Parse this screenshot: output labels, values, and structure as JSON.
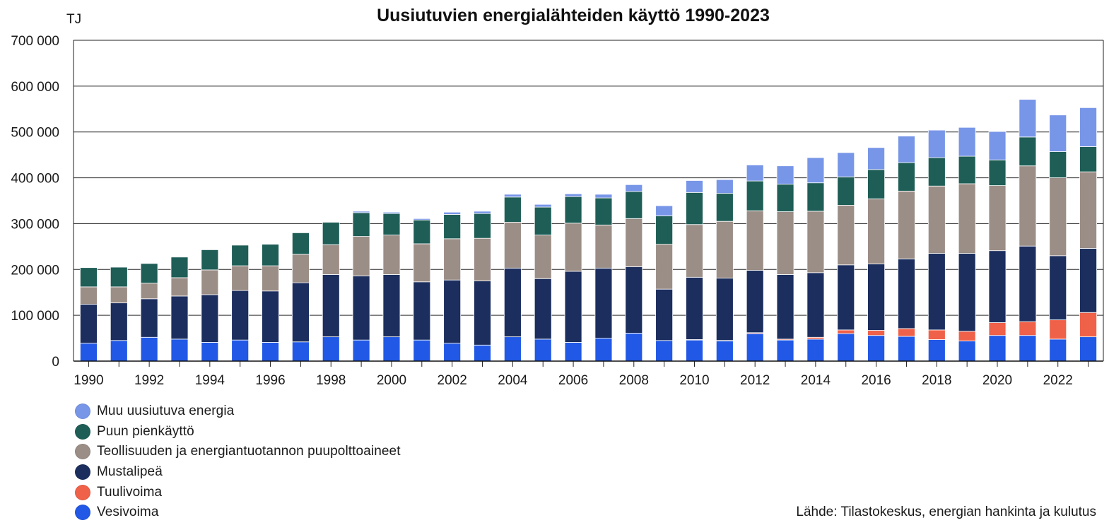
{
  "chart_data": {
    "type": "bar",
    "stacked": true,
    "title": "Uusiutuvien energialähteiden käyttö 1990-2023",
    "ylabel": "TJ",
    "xlabel": "",
    "ylim": [
      0,
      700000
    ],
    "yticks": [
      0,
      100000,
      200000,
      300000,
      400000,
      500000,
      600000,
      700000
    ],
    "ytick_labels": [
      "0",
      "100 000",
      "200 000",
      "300 000",
      "400 000",
      "500 000",
      "600 000",
      "700 000"
    ],
    "categories": [
      "1990",
      "1991",
      "1992",
      "1993",
      "1994",
      "1995",
      "1996",
      "1997",
      "1998",
      "1999",
      "2000",
      "2001",
      "2002",
      "2003",
      "2004",
      "2005",
      "2006",
      "2007",
      "2008",
      "2009",
      "2010",
      "2011",
      "2012",
      "2013",
      "2014",
      "2015",
      "2016",
      "2017",
      "2018",
      "2019",
      "2020",
      "2021",
      "2022",
      "2023"
    ],
    "xtick_labels": [
      "1990",
      "",
      "1992",
      "",
      "1994",
      "",
      "1996",
      "",
      "1998",
      "",
      "2000",
      "",
      "2002",
      "",
      "2004",
      "",
      "2006",
      "",
      "2008",
      "",
      "2010",
      "",
      "2012",
      "",
      "2014",
      "",
      "2016",
      "",
      "2018",
      "",
      "2020",
      "",
      "2022",
      ""
    ],
    "grid": true,
    "series": [
      {
        "name": "Vesivoima",
        "color": "#2158e6",
        "values": [
          39000,
          45000,
          52000,
          48000,
          41000,
          46000,
          41000,
          42000,
          53000,
          46000,
          53000,
          46000,
          39000,
          35000,
          53000,
          48000,
          41000,
          50000,
          61000,
          45000,
          46000,
          44000,
          60000,
          46000,
          48000,
          60000,
          56000,
          54000,
          47000,
          44000,
          56000,
          56000,
          48000,
          53000
        ]
      },
      {
        "name": "Tuulivoima",
        "color": "#f06149",
        "values": [
          0,
          0,
          0,
          0,
          0,
          0,
          0,
          0,
          0,
          0,
          0,
          0,
          0,
          0,
          0,
          0,
          0,
          0,
          0,
          0,
          1000,
          1000,
          2000,
          2000,
          4000,
          8000,
          11000,
          17000,
          21000,
          21000,
          28000,
          30000,
          42000,
          53000
        ]
      },
      {
        "name": "Mustalipeä",
        "color": "#1c2e5e",
        "values": [
          85000,
          82000,
          84000,
          94000,
          104000,
          108000,
          112000,
          129000,
          136000,
          140000,
          136000,
          127000,
          138000,
          140000,
          150000,
          132000,
          155000,
          153000,
          145000,
          112000,
          136000,
          136000,
          136000,
          141000,
          141000,
          142000,
          145000,
          152000,
          167000,
          170000,
          157000,
          165000,
          140000,
          140000
        ]
      },
      {
        "name": "Teollisuuden ja energiantuotannon puupolttoaineet",
        "color": "#9b8e87",
        "values": [
          38000,
          35000,
          34000,
          40000,
          54000,
          54000,
          55000,
          62000,
          65000,
          86000,
          86000,
          83000,
          90000,
          93000,
          100000,
          95000,
          105000,
          94000,
          105000,
          98000,
          115000,
          124000,
          130000,
          137000,
          134000,
          130000,
          142000,
          148000,
          147000,
          152000,
          142000,
          175000,
          170000,
          167000
        ]
      },
      {
        "name": "Puun pienkäyttö",
        "color": "#1e5e56",
        "values": [
          42000,
          43000,
          43000,
          45000,
          44000,
          45000,
          47000,
          47000,
          49000,
          52000,
          47000,
          52000,
          53000,
          54000,
          55000,
          61000,
          58000,
          59000,
          59000,
          62000,
          70000,
          61000,
          65000,
          60000,
          62000,
          62000,
          64000,
          62000,
          62000,
          60000,
          56000,
          63000,
          57000,
          55000
        ]
      },
      {
        "name": "Muu uusiutuva energia",
        "color": "#7896e8",
        "values": [
          0,
          0,
          0,
          0,
          0,
          0,
          0,
          0,
          0,
          3000,
          3000,
          3000,
          5000,
          5000,
          6000,
          6000,
          6000,
          8000,
          15000,
          22000,
          26000,
          30000,
          35000,
          40000,
          55000,
          53000,
          48000,
          58000,
          60000,
          63000,
          62000,
          82000,
          80000,
          85000
        ]
      }
    ],
    "legend_position": "bottom-left"
  },
  "legend": [
    {
      "label": "Muu uusiutuva energia",
      "color": "#7896e8"
    },
    {
      "label": "Puun pienkäyttö",
      "color": "#1e5e56"
    },
    {
      "label": "Teollisuuden ja energiantuotannon puupolttoaineet",
      "color": "#9b8e87"
    },
    {
      "label": "Mustalipeä",
      "color": "#1c2e5e"
    },
    {
      "label": "Tuulivoima",
      "color": "#f06149"
    },
    {
      "label": "Vesivoima",
      "color": "#2158e6"
    }
  ],
  "source_note": "Lähde: Tilastokeskus, energian hankinta ja kulutus"
}
